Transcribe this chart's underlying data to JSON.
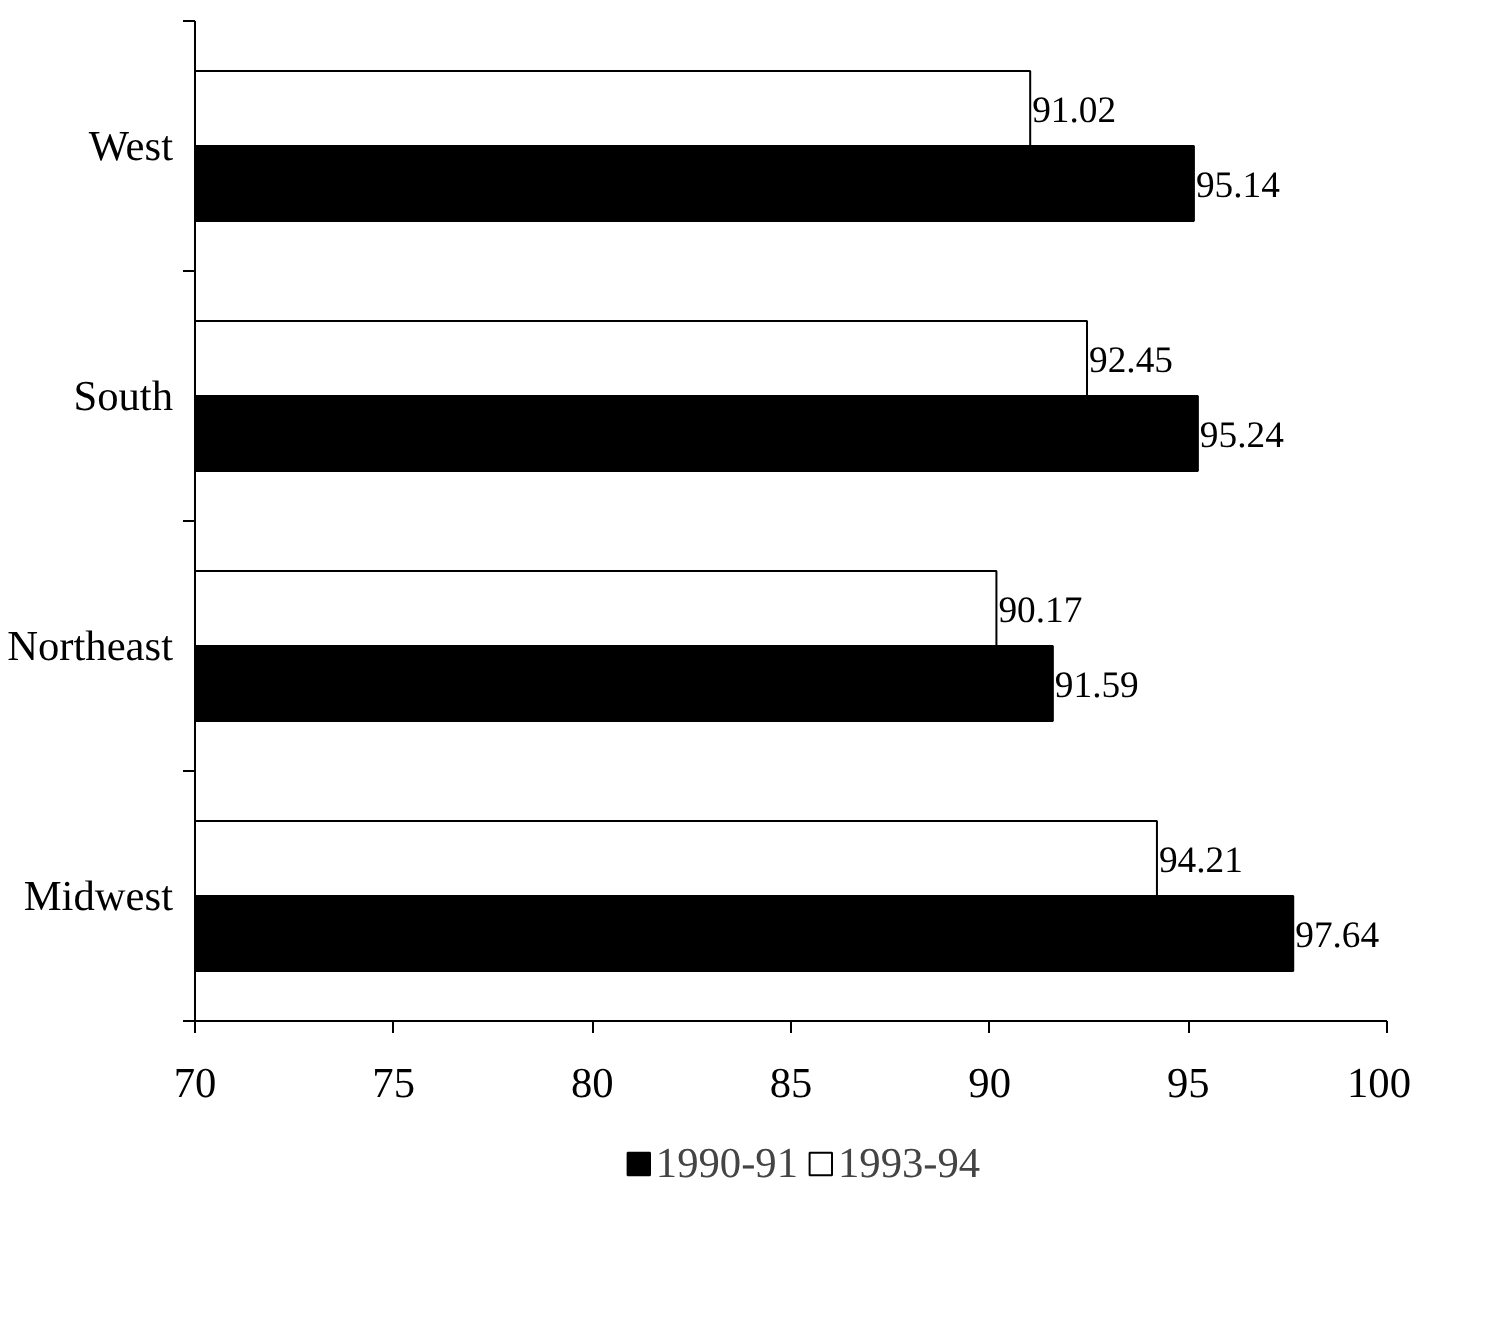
{
  "chart_data": {
    "type": "bar",
    "orientation": "horizontal",
    "categories": [
      "West",
      "South",
      "Northeast",
      "Midwest"
    ],
    "series": [
      {
        "name": "1990-91",
        "color": "#000000",
        "values": [
          95.14,
          95.24,
          91.59,
          97.64
        ]
      },
      {
        "name": "1993-94",
        "color": "#ffffff",
        "values": [
          91.02,
          92.45,
          90.17,
          94.21
        ]
      }
    ],
    "xlim": [
      70,
      100
    ],
    "xticks": [
      70,
      75,
      80,
      85,
      90,
      95,
      100
    ],
    "data_labels": true,
    "legend": "bottom",
    "grid": false
  }
}
